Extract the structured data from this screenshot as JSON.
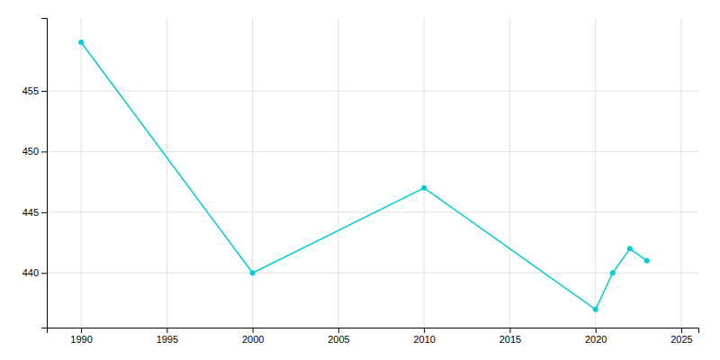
{
  "chart_data": {
    "type": "line",
    "x": [
      1990,
      2000,
      2010,
      2020,
      2021,
      2022,
      2023
    ],
    "values": [
      459,
      440,
      447,
      437,
      440,
      442,
      441
    ],
    "color": "#00CED1",
    "marker": "o",
    "xlim": [
      1988,
      2026
    ],
    "ylim": [
      435.5,
      461
    ],
    "xticks": [
      1990,
      1995,
      2000,
      2005,
      2010,
      2015,
      2020,
      2025
    ],
    "yticks": [
      440,
      445,
      450,
      455
    ],
    "grid": true
  }
}
